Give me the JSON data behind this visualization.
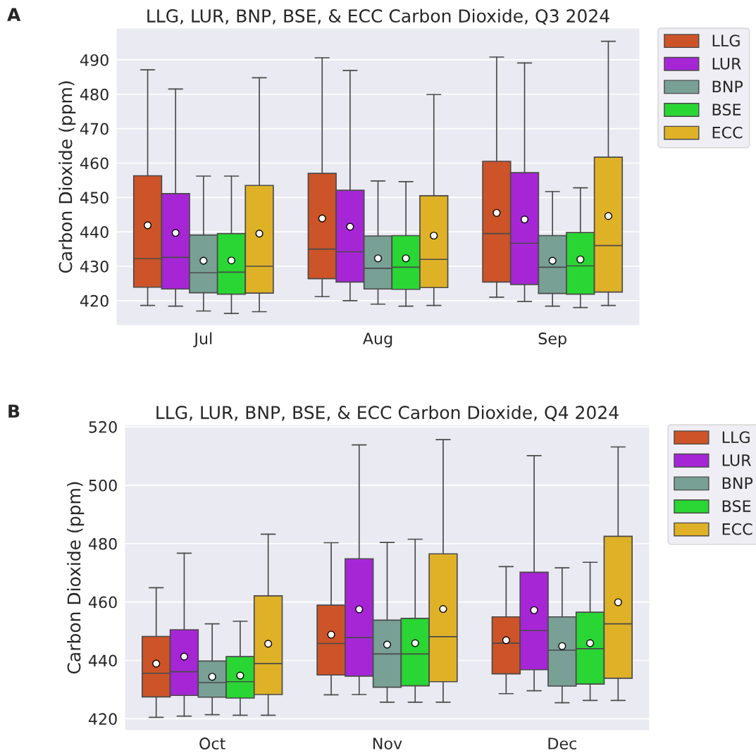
{
  "chart_data": [
    {
      "type": "box",
      "title": "LLG, LUR, BNP, BSE, & ECC Carbon Dioxide, Q3 2024",
      "ylabel": "Carbon Dioxide (ppm)",
      "annotations": [
        "A"
      ],
      "categories": [
        "Jul",
        "Aug",
        "Sep"
      ],
      "ylim": [
        412.8,
        499.2
      ],
      "yticks": [
        420,
        430,
        440,
        450,
        460,
        470,
        480,
        490
      ],
      "grid": "y",
      "legend": "top right",
      "series": [
        {
          "name": "LLG",
          "color": "#cc5428",
          "boxes": [
            {
              "low": 418.6,
              "q1": 423.9,
              "median": 432.2,
              "q3": 456.3,
              "high": 487.1,
              "mean": 441.9
            },
            {
              "low": 421.2,
              "q1": 426.4,
              "median": 435.0,
              "q3": 457.0,
              "high": 490.6,
              "mean": 443.9
            },
            {
              "low": 421.0,
              "q1": 425.4,
              "median": 439.5,
              "q3": 460.5,
              "high": 490.8,
              "mean": 445.5
            }
          ]
        },
        {
          "name": "LUR",
          "color": "#a626d6",
          "boxes": [
            {
              "low": 418.4,
              "q1": 423.4,
              "median": 432.6,
              "q3": 451.1,
              "high": 481.5,
              "mean": 439.7
            },
            {
              "low": 420.0,
              "q1": 425.4,
              "median": 434.2,
              "q3": 452.1,
              "high": 486.9,
              "mean": 441.5
            },
            {
              "low": 419.8,
              "q1": 424.7,
              "median": 436.7,
              "q3": 457.2,
              "high": 489.1,
              "mean": 443.6
            }
          ]
        },
        {
          "name": "BNP",
          "color": "#78a095",
          "boxes": [
            {
              "low": 417.0,
              "q1": 422.3,
              "median": 428.1,
              "q3": 439.1,
              "high": 456.2,
              "mean": 431.6
            },
            {
              "low": 419.0,
              "q1": 423.4,
              "median": 429.4,
              "q3": 438.8,
              "high": 454.8,
              "mean": 432.3
            },
            {
              "low": 418.4,
              "q1": 422.1,
              "median": 429.7,
              "q3": 438.9,
              "high": 451.7,
              "mean": 431.6
            }
          ]
        },
        {
          "name": "BSE",
          "color": "#29d633",
          "boxes": [
            {
              "low": 416.3,
              "q1": 421.9,
              "median": 428.3,
              "q3": 439.5,
              "high": 456.2,
              "mean": 431.7
            },
            {
              "low": 418.4,
              "q1": 423.3,
              "median": 429.7,
              "q3": 438.9,
              "high": 454.6,
              "mean": 432.3
            },
            {
              "low": 418.0,
              "q1": 421.9,
              "median": 430.1,
              "q3": 439.8,
              "high": 452.8,
              "mean": 432.0
            }
          ]
        },
        {
          "name": "ECC",
          "color": "#deb127",
          "boxes": [
            {
              "low": 416.8,
              "q1": 422.2,
              "median": 430.0,
              "q3": 453.5,
              "high": 484.8,
              "mean": 439.5
            },
            {
              "low": 418.6,
              "q1": 423.8,
              "median": 432.0,
              "q3": 450.5,
              "high": 479.9,
              "mean": 438.9
            },
            {
              "low": 418.6,
              "q1": 422.5,
              "median": 436.0,
              "q3": 461.7,
              "high": 495.4,
              "mean": 444.6
            }
          ]
        }
      ]
    },
    {
      "type": "box",
      "title": "LLG, LUR, BNP, BSE, & ECC Carbon Dioxide, Q4 2024",
      "ylabel": "Carbon Dioxide (ppm)",
      "annotations": [
        "B"
      ],
      "categories": [
        "Oct",
        "Nov",
        "Dec"
      ],
      "ylim": [
        416.0,
        520.7
      ],
      "yticks": [
        420,
        440,
        460,
        480,
        500,
        520
      ],
      "grid": "y",
      "legend": "top right",
      "series": [
        {
          "name": "LLG",
          "color": "#cc5428",
          "boxes": [
            {
              "low": 420.5,
              "q1": 427.5,
              "median": 435.6,
              "q3": 448.2,
              "high": 464.9,
              "mean": 438.9
            },
            {
              "low": 428.2,
              "q1": 435.0,
              "median": 445.8,
              "q3": 458.9,
              "high": 480.3,
              "mean": 448.8
            },
            {
              "low": 428.6,
              "q1": 435.4,
              "median": 445.9,
              "q3": 454.9,
              "high": 472.1,
              "mean": 446.9
            }
          ]
        },
        {
          "name": "LUR",
          "color": "#a626d6",
          "boxes": [
            {
              "low": 420.9,
              "q1": 428.0,
              "median": 436.1,
              "q3": 450.5,
              "high": 476.7,
              "mean": 441.3
            },
            {
              "low": 428.3,
              "q1": 434.6,
              "median": 447.8,
              "q3": 474.8,
              "high": 513.8,
              "mean": 457.5
            },
            {
              "low": 429.6,
              "q1": 436.8,
              "median": 450.2,
              "q3": 470.2,
              "high": 510.1,
              "mean": 457.2
            }
          ]
        },
        {
          "name": "BNP",
          "color": "#78a095",
          "boxes": [
            {
              "low": 421.4,
              "q1": 427.4,
              "median": 432.4,
              "q3": 439.8,
              "high": 452.5,
              "mean": 434.4
            },
            {
              "low": 425.7,
              "q1": 430.8,
              "median": 442.2,
              "q3": 453.8,
              "high": 480.4,
              "mean": 445.4
            },
            {
              "low": 425.5,
              "q1": 431.2,
              "median": 443.5,
              "q3": 454.9,
              "high": 471.7,
              "mean": 444.9
            }
          ]
        },
        {
          "name": "BSE",
          "color": "#29d633",
          "boxes": [
            {
              "low": 421.2,
              "q1": 427.1,
              "median": 432.7,
              "q3": 441.3,
              "high": 453.4,
              "mean": 434.8
            },
            {
              "low": 425.7,
              "q1": 431.3,
              "median": 442.2,
              "q3": 454.4,
              "high": 481.5,
              "mean": 445.9
            },
            {
              "low": 426.3,
              "q1": 431.9,
              "median": 444.0,
              "q3": 456.5,
              "high": 473.6,
              "mean": 445.9
            }
          ]
        },
        {
          "name": "ECC",
          "color": "#deb127",
          "boxes": [
            {
              "low": 421.2,
              "q1": 428.3,
              "median": 438.9,
              "q3": 462.1,
              "high": 483.2,
              "mean": 445.7
            },
            {
              "low": 425.7,
              "q1": 432.7,
              "median": 448.1,
              "q3": 476.5,
              "high": 515.6,
              "mean": 457.6
            },
            {
              "low": 426.3,
              "q1": 433.9,
              "median": 452.5,
              "q3": 482.5,
              "high": 513.1,
              "mean": 459.9
            }
          ]
        }
      ]
    }
  ]
}
